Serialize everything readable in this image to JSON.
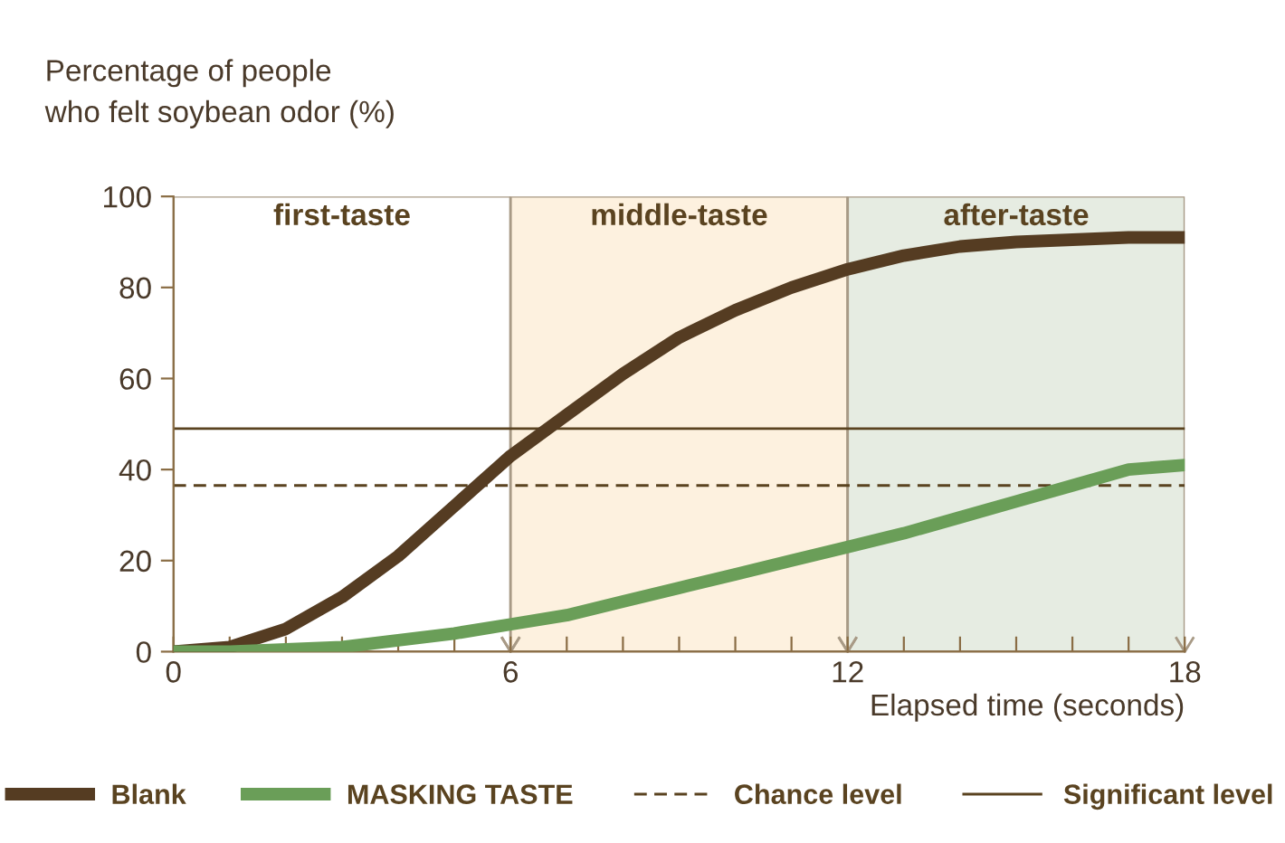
{
  "chart_data": {
    "type": "line",
    "ylabel": "Percentage of people\nwho felt soybean odor (%)",
    "xlabel": "Elapsed time (seconds)",
    "x": [
      0,
      1,
      2,
      3,
      4,
      5,
      6,
      7,
      8,
      9,
      10,
      11,
      12,
      13,
      14,
      15,
      16,
      17,
      18
    ],
    "series": [
      {
        "name": "Blank",
        "color": "#553c22",
        "values": [
          0,
          1,
          5,
          12,
          21,
          32,
          43,
          52,
          61,
          69,
          75,
          80,
          84,
          87,
          89,
          90,
          90.5,
          91,
          91
        ]
      },
      {
        "name": "MASKING TASTE",
        "color": "#6a9e58",
        "values": [
          0,
          0,
          0.5,
          1,
          2.5,
          4,
          6,
          8,
          11,
          14,
          17,
          20,
          23,
          26,
          29.5,
          33,
          36.5,
          40,
          41
        ]
      }
    ],
    "xlim": [
      0,
      18
    ],
    "ylim": [
      0,
      100
    ],
    "xticks": [
      0,
      {
        "value": 1,
        "label": null
      },
      {
        "value": 2,
        "label": null
      },
      {
        "value": 3,
        "label": null
      },
      {
        "value": 4,
        "label": null
      },
      {
        "value": 5,
        "label": null
      },
      6,
      {
        "value": 7,
        "label": null
      },
      {
        "value": 8,
        "label": null
      },
      {
        "value": 9,
        "label": null
      },
      {
        "value": 10,
        "label": null
      },
      {
        "value": 11,
        "label": null
      },
      12,
      {
        "value": 13,
        "label": null
      },
      {
        "value": 14,
        "label": null
      },
      {
        "value": 15,
        "label": null
      },
      {
        "value": 16,
        "label": null
      },
      {
        "value": 17,
        "label": null
      },
      18
    ],
    "yticks": [
      0,
      20,
      40,
      60,
      80,
      100
    ],
    "ref_lines": [
      {
        "axis": "y",
        "value": 36.5,
        "label": "Chance level",
        "color": "#5a4320",
        "line_style": "dashed"
      },
      {
        "axis": "y",
        "value": 49,
        "label": "Significant level",
        "color": "#5a4320",
        "line_style": "solid"
      }
    ],
    "bands": [
      {
        "axis": "x",
        "from": 0,
        "to": 6,
        "label": "first-taste",
        "color": "#ffffff"
      },
      {
        "axis": "x",
        "from": 6,
        "to": 12,
        "label": "middle-taste",
        "color": "#fdf1df"
      },
      {
        "axis": "x",
        "from": 12,
        "to": 18,
        "label": "after-taste",
        "color": "#e6ece2"
      }
    ],
    "grid": false,
    "legend": "bottom",
    "marker": "none",
    "line_style": "solid"
  }
}
